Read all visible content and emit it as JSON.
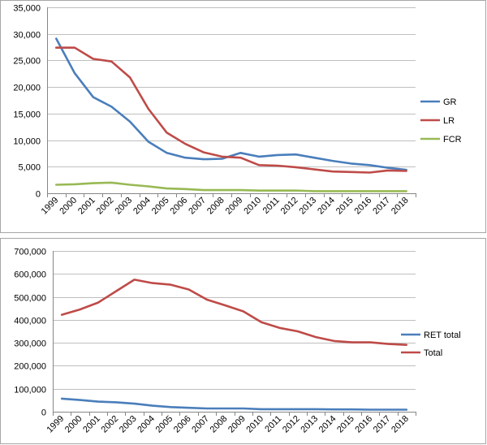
{
  "chart_data": [
    {
      "type": "line",
      "categories": [
        "1999",
        "2000",
        "2001",
        "2002",
        "2003",
        "2004",
        "2005",
        "2006",
        "2007",
        "2008",
        "2009",
        "2010",
        "2011",
        "2012",
        "2013",
        "2014",
        "2015",
        "2016",
        "2017",
        "2018"
      ],
      "ylim": [
        0,
        35000
      ],
      "yticks": [
        "0",
        "5,000",
        "10,000",
        "15,000",
        "20,000",
        "25,000",
        "30,000",
        "35,000"
      ],
      "grid": true,
      "legend_position": "right",
      "series": [
        {
          "name": "GR",
          "color": "#4a7ebb",
          "values": [
            29100,
            22600,
            18100,
            16300,
            13500,
            9700,
            7600,
            6700,
            6400,
            6500,
            7600,
            6900,
            7200,
            7300,
            6700,
            6100,
            5600,
            5300,
            4800,
            4400
          ]
        },
        {
          "name": "LR",
          "color": "#be4b48",
          "values": [
            27400,
            27400,
            25300,
            24800,
            21800,
            15900,
            11400,
            9300,
            7700,
            6900,
            6700,
            5300,
            5200,
            4900,
            4500,
            4100,
            4000,
            3900,
            4300,
            4200
          ]
        },
        {
          "name": "FCR",
          "color": "#98b954",
          "values": [
            1600,
            1700,
            1900,
            2000,
            1600,
            1300,
            900,
            800,
            600,
            600,
            600,
            500,
            500,
            500,
            400,
            400,
            400,
            400,
            400,
            400
          ]
        }
      ]
    },
    {
      "type": "line",
      "categories": [
        "1999",
        "2000",
        "2001",
        "2002",
        "2003",
        "2004",
        "2005",
        "2006",
        "2007",
        "2008",
        "2009",
        "2010",
        "2011",
        "2012",
        "2013",
        "2014",
        "2015",
        "2016",
        "2017",
        "2018"
      ],
      "ylim": [
        0,
        700000
      ],
      "yticks": [
        "0",
        "100,000",
        "200,000",
        "300,000",
        "400,000",
        "500,000",
        "600,000",
        "700,000"
      ],
      "grid": true,
      "legend_position": "right",
      "series": [
        {
          "name": "RET total",
          "color": "#4a7ebb",
          "values": [
            57000,
            51000,
            44000,
            41000,
            35000,
            26000,
            20000,
            17000,
            14000,
            14000,
            14000,
            11000,
            11000,
            11000,
            11000,
            10000,
            10000,
            9000,
            9000,
            9000
          ]
        },
        {
          "name": "Total",
          "color": "#be4b48",
          "values": [
            422000,
            445000,
            475000,
            525000,
            575000,
            560000,
            553000,
            532000,
            488000,
            463000,
            437000,
            390000,
            365000,
            350000,
            325000,
            308000,
            302000,
            302000,
            295000,
            291000
          ]
        }
      ]
    }
  ]
}
